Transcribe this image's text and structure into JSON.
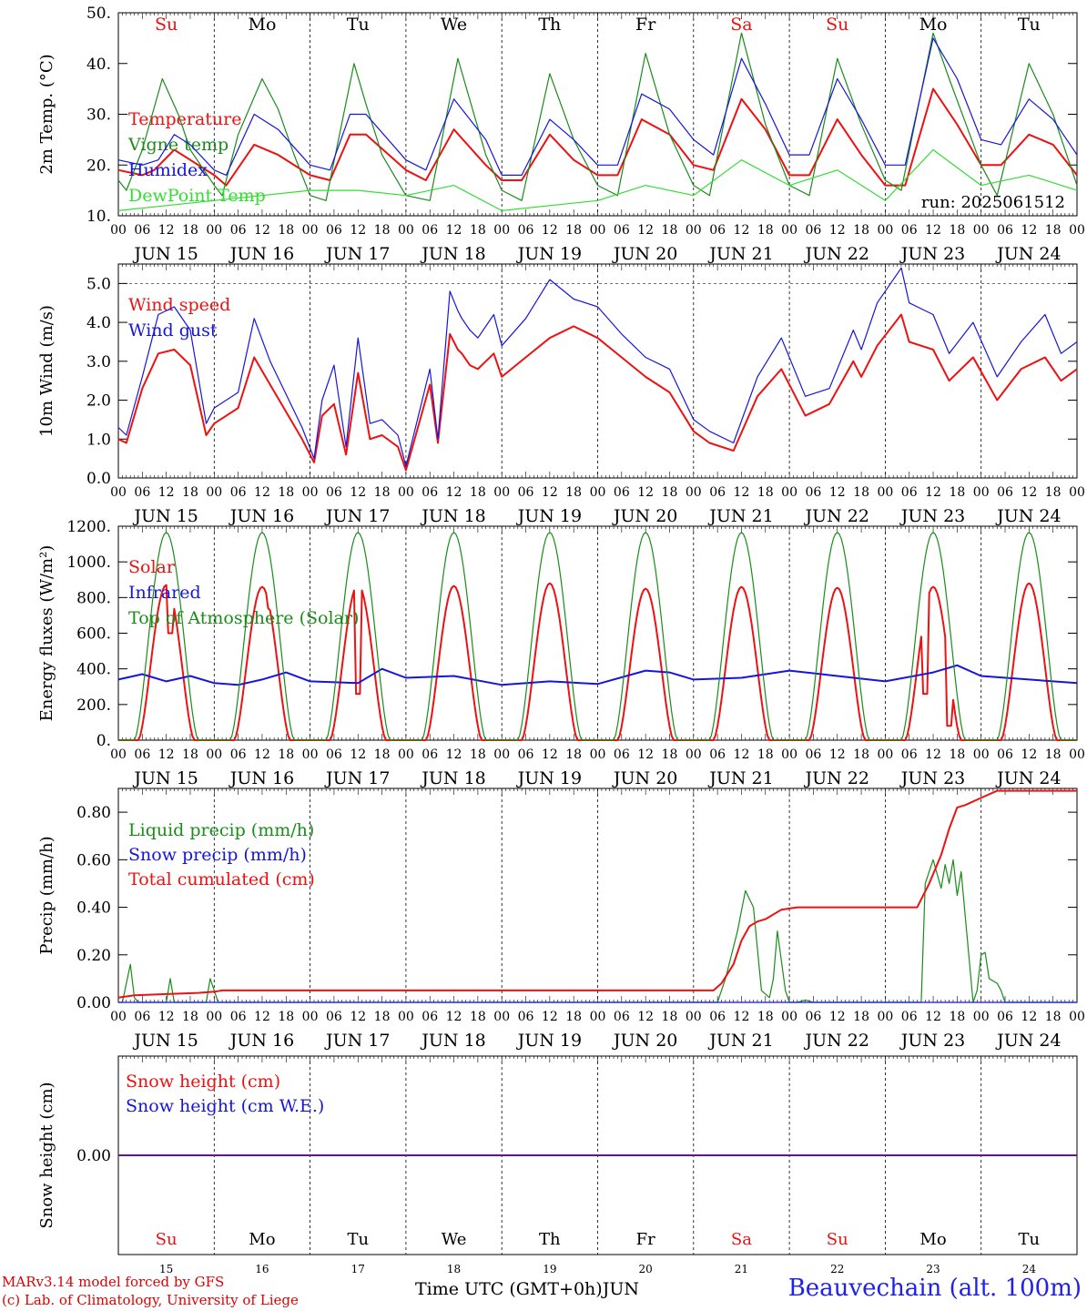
{
  "footer": {
    "model": "MARv3.14 model forced by GFS",
    "lab": "(c) Lab. of Climatology, University of Liege",
    "axis_title": "Time UTC (GMT+0h)",
    "month": "JUN",
    "station": "Beauvechain (alt. 100m)"
  },
  "run_label": "run: 2025061512",
  "colors": {
    "red": "#ee1111",
    "green": "#1a8c1a",
    "lightgreen": "#33dd33",
    "blue": "#1515dd",
    "sunday": "#ee1111",
    "weekday": "#000000"
  },
  "days": [
    {
      "weekday": "Su",
      "date_label": "JUN 15",
      "day_num": "15",
      "weekend": true
    },
    {
      "weekday": "Mo",
      "date_label": "JUN 16",
      "day_num": "16",
      "weekend": false
    },
    {
      "weekday": "Tu",
      "date_label": "JUN 17",
      "day_num": "17",
      "weekend": false
    },
    {
      "weekday": "We",
      "date_label": "JUN 18",
      "day_num": "18",
      "weekend": false
    },
    {
      "weekday": "Th",
      "date_label": "JUN 19",
      "day_num": "19",
      "weekend": false
    },
    {
      "weekday": "Fr",
      "date_label": "JUN 20",
      "day_num": "20",
      "weekend": false
    },
    {
      "weekday": "Sa",
      "date_label": "JUN 21",
      "day_num": "21",
      "weekend": true
    },
    {
      "weekday": "Su",
      "date_label": "JUN 22",
      "day_num": "22",
      "weekend": true
    },
    {
      "weekday": "Mo",
      "date_label": "JUN 23",
      "day_num": "23",
      "weekend": false
    },
    {
      "weekday": "Tu",
      "date_label": "JUN 24",
      "day_num": "24",
      "weekend": false
    }
  ],
  "hour_labels": [
    "00",
    "06",
    "12",
    "18"
  ],
  "chart_data": [
    {
      "id": "temp",
      "type": "line",
      "ylabel": "2m Temp. (°C)",
      "ylim": [
        10,
        50
      ],
      "yticks": [
        10,
        20,
        30,
        40,
        50
      ],
      "ytick_labels": [
        "10.",
        "20.",
        "30.",
        "40.",
        "50."
      ],
      "x_unit": "hours since JUN 15 00 UTC",
      "xlim": [
        0,
        240
      ],
      "series": [
        {
          "name": "Temperature",
          "color": "red",
          "x": [
            0,
            6,
            9,
            14,
            18,
            24,
            27,
            34,
            40,
            48,
            53,
            58,
            62,
            72,
            77,
            84,
            92,
            96,
            101,
            108,
            114,
            120,
            125,
            131,
            138,
            144,
            149,
            156,
            162,
            168,
            173,
            180,
            186,
            192,
            197,
            204,
            210,
            216,
            221,
            228,
            234,
            240
          ],
          "y": [
            19,
            18,
            19,
            23,
            21,
            18,
            16,
            24,
            22,
            18,
            17,
            26,
            26,
            19,
            17,
            27,
            20,
            17,
            17,
            26,
            21,
            18,
            18,
            29,
            26,
            20,
            19,
            33,
            27,
            18,
            18,
            29,
            22,
            16,
            16,
            35,
            28,
            20,
            20,
            26,
            24,
            18
          ]
        },
        {
          "name": "Vigne temp",
          "color": "green",
          "x": [
            0,
            2,
            6,
            11,
            15,
            18,
            24,
            26,
            30,
            36,
            40,
            44,
            48,
            52,
            59,
            62,
            66,
            72,
            78,
            85,
            92,
            96,
            101,
            108,
            114,
            120,
            125,
            132,
            138,
            144,
            148,
            156,
            162,
            168,
            173,
            180,
            186,
            192,
            196,
            204,
            208,
            216,
            220,
            228,
            234,
            240
          ],
          "y": [
            17,
            15,
            23,
            37,
            30,
            23,
            16,
            14,
            26,
            37,
            31,
            22,
            14,
            13,
            40,
            32,
            22,
            14,
            13,
            41,
            22,
            15,
            13,
            38,
            25,
            16,
            14,
            42,
            26,
            16,
            14,
            46,
            28,
            16,
            14,
            41,
            28,
            17,
            15,
            46,
            37,
            20,
            14,
            40,
            30,
            16
          ]
        },
        {
          "name": "Humidex",
          "color": "blue",
          "x": [
            0,
            6,
            10,
            14,
            18,
            24,
            27,
            34,
            40,
            48,
            53,
            58,
            62,
            72,
            77,
            84,
            92,
            96,
            101,
            108,
            114,
            120,
            125,
            131,
            138,
            144,
            149,
            156,
            162,
            168,
            173,
            180,
            186,
            192,
            197,
            204,
            210,
            216,
            221,
            228,
            234,
            240
          ],
          "y": [
            21,
            20,
            21,
            26,
            24,
            19,
            18,
            30,
            27,
            20,
            19,
            30,
            30,
            21,
            19,
            33,
            25,
            18,
            18,
            29,
            25,
            20,
            20,
            34,
            31,
            25,
            22,
            41,
            32,
            22,
            22,
            37,
            29,
            20,
            20,
            45,
            37,
            25,
            24,
            33,
            29,
            22
          ]
        },
        {
          "name": "DewPoint Temp",
          "color": "lightgreen",
          "x": [
            0,
            12,
            24,
            36,
            48,
            60,
            72,
            84,
            96,
            108,
            120,
            132,
            144,
            156,
            168,
            180,
            192,
            204,
            216,
            228,
            240
          ],
          "y": [
            11,
            12,
            13,
            14,
            15,
            15,
            14,
            16,
            11,
            12,
            13,
            16,
            14,
            21,
            16,
            19,
            13,
            23,
            16,
            18,
            15
          ]
        }
      ]
    },
    {
      "id": "wind",
      "type": "line",
      "ylabel": "10m Wind (m/s)",
      "ylim": [
        0,
        5.5
      ],
      "yticks": [
        0,
        1,
        2,
        3,
        4,
        5
      ],
      "ytick_labels": [
        "0.0",
        "1.0",
        "2.0",
        "3.0",
        "4.0",
        "5.0"
      ],
      "dashed_ref": 5.0,
      "xlim": [
        0,
        240
      ],
      "series": [
        {
          "name": "Wind speed",
          "color": "red",
          "x": [
            0,
            2,
            6,
            10,
            14,
            18,
            22,
            24,
            30,
            34,
            38,
            46,
            49,
            51,
            54,
            57,
            60,
            63,
            66,
            70,
            72,
            78,
            80,
            83,
            85,
            86,
            88,
            90,
            94,
            96,
            102,
            108,
            114,
            120,
            126,
            132,
            138,
            144,
            148,
            154,
            160,
            166,
            172,
            178,
            184,
            186,
            190,
            196,
            198,
            204,
            208,
            214,
            220,
            226,
            232,
            236,
            240
          ],
          "y": [
            1.0,
            0.9,
            2.3,
            3.2,
            3.3,
            2.9,
            1.1,
            1.4,
            1.8,
            3.1,
            2.4,
            1.0,
            0.4,
            1.6,
            1.9,
            0.6,
            2.7,
            1.0,
            1.1,
            0.8,
            0.2,
            2.4,
            0.9,
            3.7,
            3.3,
            3.2,
            2.9,
            2.8,
            3.2,
            2.6,
            3.1,
            3.6,
            3.9,
            3.6,
            3.1,
            2.6,
            2.2,
            1.2,
            0.9,
            0.7,
            2.1,
            2.8,
            1.6,
            1.9,
            3.0,
            2.6,
            3.4,
            4.2,
            3.5,
            3.3,
            2.5,
            3.1,
            2.0,
            2.8,
            3.1,
            2.5,
            2.8
          ]
        },
        {
          "name": "Wind gust",
          "color": "blue",
          "x": [
            0,
            2,
            6,
            10,
            14,
            18,
            22,
            24,
            30,
            34,
            38,
            46,
            49,
            51,
            54,
            57,
            60,
            63,
            66,
            70,
            72,
            78,
            80,
            83,
            85,
            86,
            88,
            90,
            94,
            96,
            102,
            108,
            114,
            120,
            126,
            132,
            138,
            144,
            148,
            154,
            160,
            166,
            172,
            178,
            184,
            186,
            190,
            196,
            198,
            204,
            208,
            214,
            220,
            226,
            232,
            236,
            240
          ],
          "y": [
            1.3,
            1.1,
            2.6,
            4.2,
            4.4,
            3.8,
            1.4,
            1.8,
            2.2,
            4.1,
            3.0,
            1.3,
            0.5,
            2.0,
            2.9,
            0.8,
            3.6,
            1.4,
            1.5,
            1.1,
            0.3,
            2.8,
            1.0,
            4.8,
            4.3,
            4.1,
            3.8,
            3.6,
            4.2,
            3.4,
            4.1,
            5.1,
            4.6,
            4.4,
            3.7,
            3.1,
            2.8,
            1.5,
            1.2,
            0.9,
            2.6,
            3.6,
            2.1,
            2.3,
            3.8,
            3.3,
            4.5,
            5.4,
            4.5,
            4.2,
            3.2,
            4.0,
            2.6,
            3.5,
            4.2,
            3.2,
            3.5
          ]
        }
      ]
    },
    {
      "id": "energy",
      "type": "line",
      "ylabel": "Energy fluxes (W/m²)",
      "ylim": [
        0,
        1200
      ],
      "yticks": [
        0,
        200,
        400,
        600,
        800,
        1000,
        1200
      ],
      "ytick_labels": [
        "0.",
        "200.",
        "400.",
        "600.",
        "800.",
        "1000.",
        "1200."
      ],
      "xlim": [
        0,
        240
      ],
      "series": [
        {
          "name": "Solar",
          "color": "red",
          "peaks": [
            870,
            860,
            875,
            865,
            880,
            850,
            860,
            855,
            860,
            880
          ],
          "dips": [
            {
              "x": 13,
              "y": 600
            },
            {
              "x": 16,
              "y": 660
            },
            {
              "x": 38,
              "y": 740
            },
            {
              "x": 41,
              "y": 760
            },
            {
              "x": 60,
              "y": 260
            },
            {
              "x": 64,
              "y": 870
            },
            {
              "x": 202,
              "y": 260
            },
            {
              "x": 208,
              "y": 80
            }
          ]
        },
        {
          "name": "Infrared",
          "color": "blue",
          "x": [
            0,
            6,
            12,
            18,
            24,
            30,
            36,
            42,
            48,
            60,
            66,
            72,
            84,
            96,
            108,
            120,
            132,
            138,
            144,
            156,
            168,
            180,
            192,
            204,
            210,
            216,
            228,
            240
          ],
          "y": [
            340,
            370,
            330,
            360,
            320,
            310,
            340,
            380,
            330,
            320,
            400,
            350,
            360,
            310,
            330,
            315,
            390,
            380,
            340,
            350,
            390,
            360,
            330,
            380,
            420,
            360,
            340,
            320
          ]
        },
        {
          "name": "Top of Atmosphere (Solar)",
          "color": "green",
          "peak": 1165,
          "sunrise_h": 4,
          "sunset_h": 20
        }
      ]
    },
    {
      "id": "precip",
      "type": "line",
      "ylabel": "Precip (mm/h)",
      "ylim": [
        0,
        0.9
      ],
      "yticks": [
        0,
        0.2,
        0.4,
        0.6,
        0.8
      ],
      "ytick_labels": [
        "0.00",
        "0.20",
        "0.40",
        "0.60",
        "0.80"
      ],
      "xlim": [
        0,
        240
      ],
      "series": [
        {
          "name": "Liquid precip (mm/h)",
          "color": "green",
          "x": [
            0,
            1,
            3,
            4,
            5,
            6,
            12,
            13,
            14,
            22,
            23,
            24,
            25,
            26,
            150,
            152,
            155,
            157,
            159,
            161,
            163,
            164,
            165,
            167,
            168,
            170,
            172,
            174,
            201,
            202,
            204,
            206,
            207,
            208,
            209,
            210,
            211,
            214,
            215,
            216,
            217,
            218,
            220,
            221,
            222,
            223,
            224,
            225,
            226,
            240
          ],
          "y": [
            0,
            0,
            0.16,
            0.02,
            0,
            0,
            0,
            0.1,
            0,
            0,
            0.1,
            0.05,
            0,
            0,
            0,
            0.1,
            0.3,
            0.47,
            0.4,
            0.05,
            0.02,
            0.1,
            0.3,
            0.05,
            0,
            0,
            0.01,
            0,
            0,
            0.5,
            0.6,
            0.48,
            0.58,
            0.5,
            0.6,
            0.45,
            0.55,
            0,
            0.05,
            0.2,
            0.21,
            0.1,
            0.08,
            0.05,
            0,
            0,
            0,
            0,
            0,
            0
          ]
        },
        {
          "name": "Snow precip (mm/h)",
          "color": "blue",
          "x": [
            0,
            240
          ],
          "y": [
            0,
            0
          ]
        },
        {
          "name": "Total cumulated (cm)",
          "color": "red",
          "x": [
            0,
            4,
            12,
            20,
            24,
            26,
            40,
            149,
            151,
            154,
            156,
            158,
            160,
            162,
            166,
            168,
            170,
            200,
            203,
            206,
            208,
            210,
            212,
            216,
            220,
            222,
            228,
            240
          ],
          "y": [
            0.02,
            0.03,
            0.035,
            0.04,
            0.045,
            0.05,
            0.05,
            0.05,
            0.08,
            0.16,
            0.26,
            0.32,
            0.34,
            0.35,
            0.39,
            0.395,
            0.4,
            0.4,
            0.5,
            0.62,
            0.73,
            0.82,
            0.83,
            0.86,
            0.89,
            0.89,
            0.89,
            0.89
          ]
        }
      ]
    },
    {
      "id": "snow",
      "type": "line",
      "ylabel": "Snow height (cm)",
      "ylim": [
        -1,
        1
      ],
      "yticks": [
        0
      ],
      "ytick_labels": [
        "0.00"
      ],
      "xlim": [
        0,
        240
      ],
      "series": [
        {
          "name": "Snow height (cm)",
          "color": "red",
          "x": [
            0,
            240
          ],
          "y": [
            0,
            0
          ]
        },
        {
          "name": "Snow height (cm W.E.)",
          "color": "blue",
          "x": [
            0,
            240
          ],
          "y": [
            0,
            0
          ]
        }
      ]
    }
  ]
}
